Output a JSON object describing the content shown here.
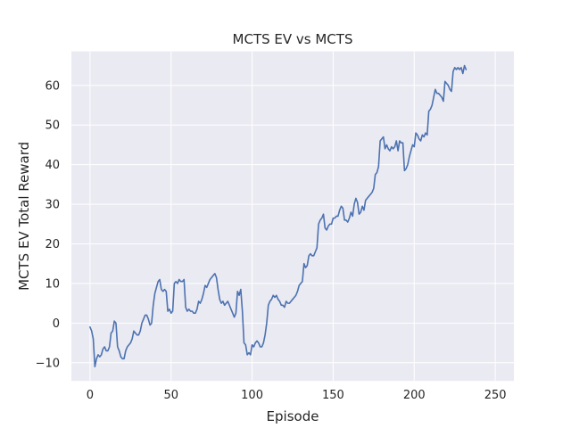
{
  "chart_data": {
    "type": "line",
    "title": "MCTS EV vs MCTS",
    "xlabel": "Episode",
    "ylabel": "MCTS EV Total Reward",
    "xlim": [
      -11.5,
      261.5
    ],
    "ylim": [
      -14.6,
      68.6
    ],
    "xticks": [
      0,
      50,
      100,
      150,
      200,
      250
    ],
    "yticks": [
      -10,
      0,
      10,
      20,
      30,
      40,
      50,
      60
    ],
    "grid": true,
    "legend": "none",
    "colors": {
      "line": "#4c72b0",
      "background": "#eaeaf2",
      "grid": "#ffffff"
    },
    "x_start": 0,
    "x_step": 1,
    "series": [
      {
        "values": [
          -1.0,
          -2.0,
          -4.0,
          -11.0,
          -9.0,
          -8.0,
          -8.5,
          -8.0,
          -6.5,
          -6.0,
          -7.0,
          -7.0,
          -6.0,
          -2.5,
          -2.0,
          0.5,
          0.0,
          -6.0,
          -7.0,
          -8.5,
          -9.0,
          -9.0,
          -7.0,
          -6.0,
          -5.5,
          -5.0,
          -4.0,
          -2.0,
          -2.5,
          -3.0,
          -3.0,
          -2.0,
          0.0,
          1.0,
          2.0,
          2.0,
          1.0,
          -0.5,
          0.0,
          4.5,
          7.5,
          9.0,
          10.5,
          11.0,
          8.5,
          8.0,
          8.5,
          8.0,
          3.0,
          3.5,
          2.5,
          3.0,
          10.0,
          10.5,
          10.0,
          11.0,
          10.5,
          10.5,
          11.0,
          4.0,
          3.0,
          3.5,
          3.0,
          3.0,
          2.5,
          2.5,
          3.5,
          5.5,
          5.0,
          6.0,
          7.5,
          9.5,
          9.0,
          10.0,
          11.0,
          11.5,
          12.0,
          12.5,
          11.5,
          8.5,
          6.0,
          5.0,
          5.5,
          4.5,
          5.0,
          5.5,
          4.5,
          3.5,
          2.5,
          1.5,
          2.5,
          8.0,
          7.0,
          8.5,
          3.0,
          -5.0,
          -5.5,
          -8.0,
          -7.5,
          -8.0,
          -5.5,
          -6.0,
          -5.0,
          -4.5,
          -5.0,
          -6.0,
          -6.0,
          -5.0,
          -3.0,
          0.0,
          4.5,
          5.5,
          6.0,
          7.0,
          6.5,
          7.0,
          6.0,
          5.5,
          4.5,
          4.5,
          4.0,
          5.5,
          5.0,
          5.0,
          5.5,
          6.0,
          6.5,
          7.0,
          8.0,
          9.5,
          10.0,
          10.5,
          15.0,
          14.0,
          14.5,
          17.0,
          17.5,
          17.0,
          17.0,
          18.0,
          19.0,
          25.0,
          26.0,
          26.5,
          27.5,
          24.0,
          23.5,
          24.5,
          25.0,
          25.0,
          26.5,
          26.5,
          27.0,
          27.0,
          28.5,
          29.5,
          29.0,
          26.0,
          26.0,
          25.5,
          26.5,
          28.0,
          27.0,
          30.0,
          31.5,
          30.5,
          27.5,
          28.0,
          29.5,
          28.5,
          31.0,
          31.5,
          32.0,
          32.5,
          33.0,
          34.0,
          37.5,
          38.0,
          39.5,
          46.0,
          46.5,
          47.0,
          44.0,
          45.0,
          44.0,
          43.5,
          44.5,
          44.0,
          44.5,
          46.0,
          43.5,
          46.0,
          45.5,
          45.5,
          38.5,
          39.0,
          40.0,
          42.0,
          43.5,
          45.0,
          44.5,
          48.0,
          47.5,
          46.5,
          46.0,
          47.5,
          47.0,
          48.0,
          47.5,
          53.5,
          54.0,
          55.0,
          57.0,
          59.0,
          58.0,
          58.0,
          57.5,
          57.0,
          56.0,
          61.0,
          60.5,
          60.0,
          59.0,
          58.5,
          63.5,
          64.5,
          64.0,
          64.5,
          64.0,
          64.5,
          63.0,
          65.0,
          64.0
        ]
      }
    ]
  }
}
